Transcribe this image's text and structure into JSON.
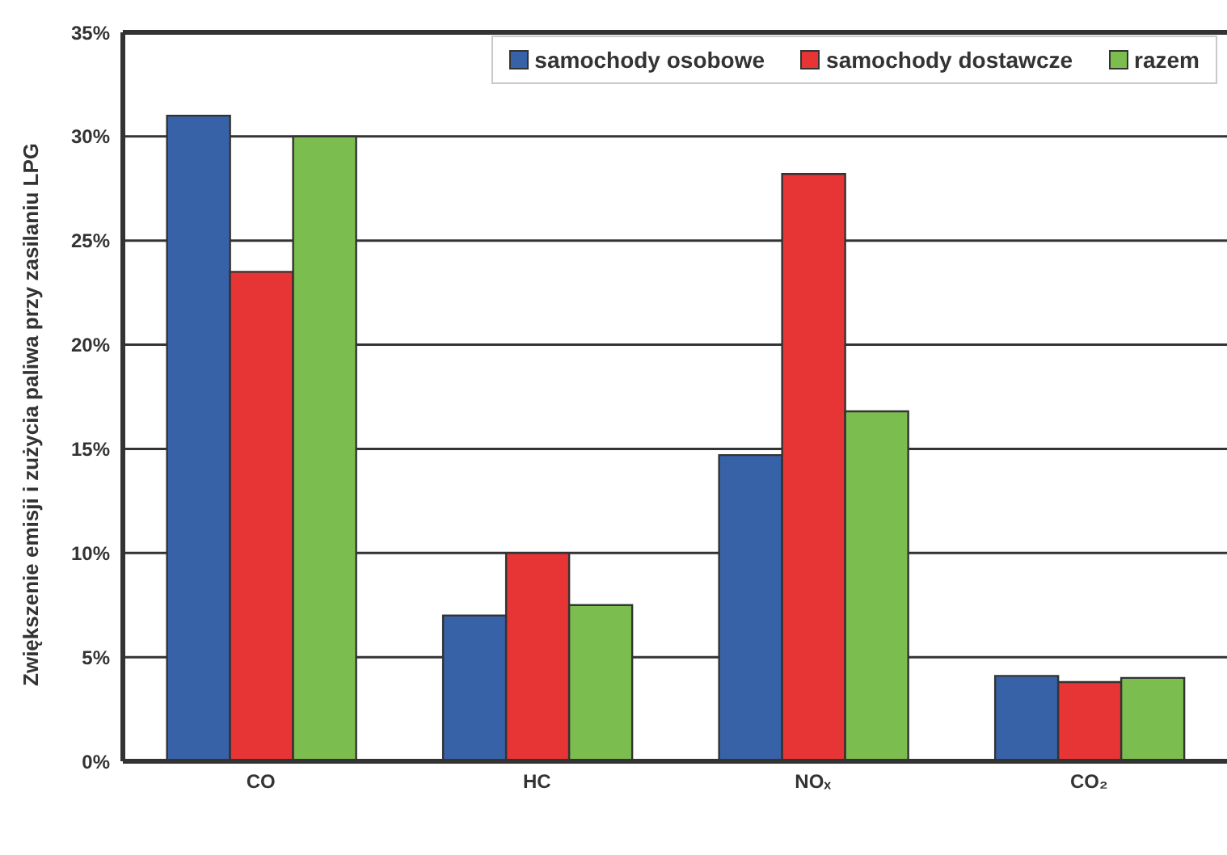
{
  "chart_data": {
    "type": "bar",
    "ylabel": "Zwiększenie emisji i zużycia paliwa przy zasilaniu LPG",
    "categories": [
      "CO",
      "HC",
      "NOₓ",
      "CO₂"
    ],
    "series": [
      {
        "name": "samochody osobowe",
        "color": "#3862a8",
        "values": [
          31,
          7,
          14.7,
          4.1
        ]
      },
      {
        "name": "samochody dostawcze",
        "color": "#e73535",
        "values": [
          23.5,
          10,
          28.2,
          3.8
        ]
      },
      {
        "name": "razem",
        "color": "#7cbd50",
        "values": [
          30,
          7.5,
          16.8,
          4.0
        ]
      }
    ],
    "ylim": [
      0,
      35
    ],
    "yticks": [
      {
        "value": 0,
        "label": "0%"
      },
      {
        "value": 5,
        "label": "5%"
      },
      {
        "value": 10,
        "label": "10%"
      },
      {
        "value": 15,
        "label": "15%"
      },
      {
        "value": 20,
        "label": "20%"
      },
      {
        "value": 25,
        "label": "25%"
      },
      {
        "value": 30,
        "label": "30%"
      },
      {
        "value": 35,
        "label": "35%"
      }
    ],
    "grid": "y",
    "legend": "top right"
  }
}
